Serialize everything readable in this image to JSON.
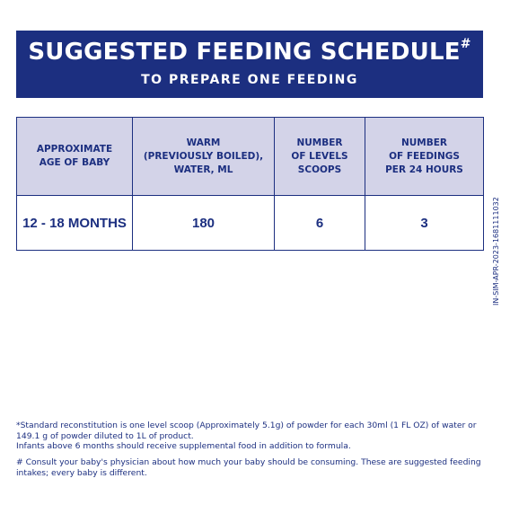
{
  "banner": {
    "title": "SUGGESTED FEEDING SCHEDULE",
    "title_mark": "#",
    "subtitle": "TO PREPARE ONE FEEDING"
  },
  "table": {
    "headers": [
      "APPROXIMATE\nAGE OF BABY",
      "WARM\n(PREVIOUSLY BOILED),\nWATER, ML",
      "NUMBER\nOF LEVELS\nSCOOPS",
      "NUMBER\nOF FEEDINGS\nPER 24 HOURS"
    ],
    "rows": [
      [
        "12 - 18 MONTHS",
        "180",
        "6",
        "3"
      ]
    ]
  },
  "side_code": "IN-SIM-APR-2023-1681111032",
  "notes": {
    "standard": "*Standard reconstitution is one level scoop (Approximately 5.1g) of powder for each 30ml (1 FL OZ) of water or 149.1 g of powder diluted to 1L of product.",
    "infants": "Infants above 6 months should receive supplemental food in addition to formula.",
    "consult": "# Consult your baby's physician about how much your baby should be consuming. These are suggested feeding intakes; every baby is different."
  },
  "colors": {
    "navy": "#1c2f80",
    "header_fill": "#d3d3e8",
    "background": "#ffffff"
  }
}
